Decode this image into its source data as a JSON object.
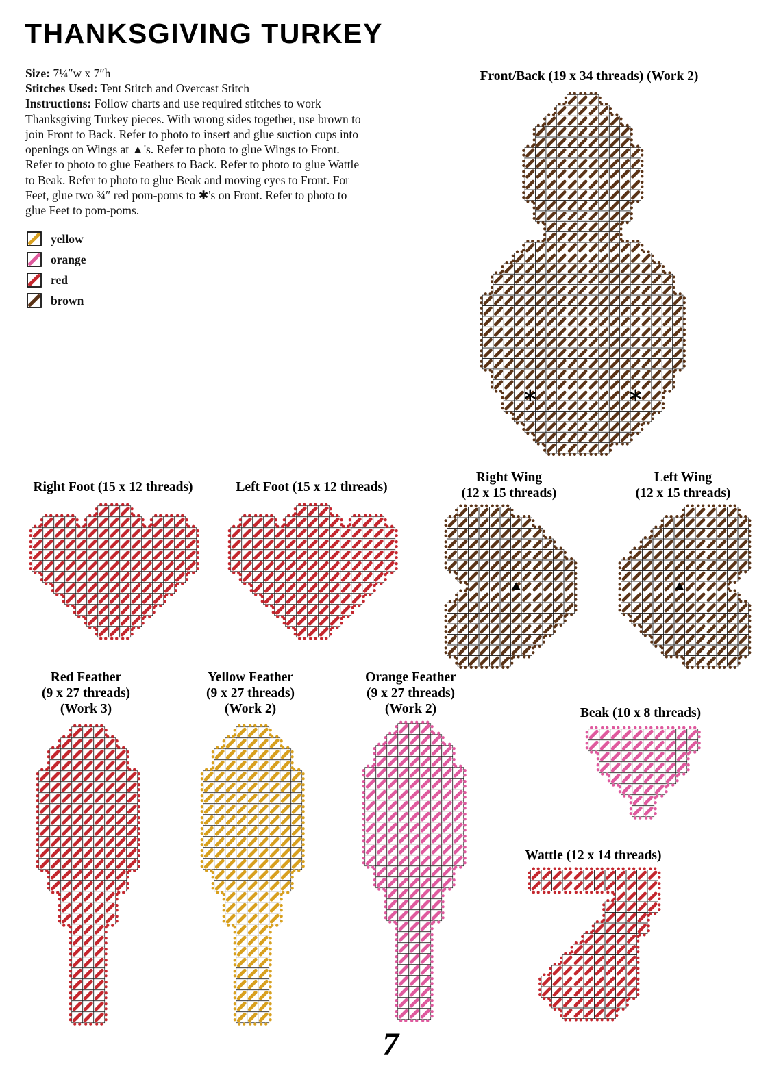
{
  "header": {
    "title": "THANKSGIVING TURKEY"
  },
  "info": {
    "size_label": "Size:",
    "size_value": "7¼″w x 7″h",
    "stitches_label": "Stitches Used:",
    "stitches_value": "Tent Stitch and Overcast Stitch",
    "instructions_label": "Instructions:",
    "instructions_value": "Follow charts and use required stitches to work Thanksgiving Turkey pieces. With wrong sides together, use brown to join Front to Back.  Refer to photo to insert and glue suction cups into openings on Wings at ▲'s. Refer to photo to glue Wings to Front. Refer to photo to glue Feathers to Back. Refer to photo to glue Wattle to Beak. Refer to photo to glue Beak and moving eyes to Front. For Feet, glue two ¾″ red pom-poms to ✱'s on Front. Refer to photo to glue Feet to pom-poms."
  },
  "legend": {
    "items": [
      {
        "label": "yellow",
        "color": "#d8a01f"
      },
      {
        "label": "orange",
        "color": "#df5a9e"
      },
      {
        "label": "red",
        "color": "#c4272e"
      },
      {
        "label": "brown",
        "color": "#5a3317"
      }
    ]
  },
  "charts": [
    {
      "id": "front_back",
      "title_lines": [
        "Front/Back (19 x 34 threads) (Work 2)"
      ],
      "color_name": "brown",
      "color": "#5a3317",
      "cols": 19,
      "rows": 34,
      "mask": [
        [
          [
            8,
            10
          ]
        ],
        [
          [
            7,
            11
          ]
        ],
        [
          [
            6,
            12
          ]
        ],
        [
          [
            5,
            13
          ]
        ],
        [
          [
            5,
            13
          ]
        ],
        [
          [
            4,
            14
          ]
        ],
        [
          [
            4,
            14
          ]
        ],
        [
          [
            4,
            14
          ]
        ],
        [
          [
            4,
            14
          ]
        ],
        [
          [
            4,
            14
          ]
        ],
        [
          [
            5,
            13
          ]
        ],
        [
          [
            5,
            13
          ]
        ],
        [
          [
            6,
            12
          ]
        ],
        [
          [
            6,
            12
          ]
        ],
        [
          [
            4,
            14
          ]
        ],
        [
          [
            3,
            15
          ]
        ],
        [
          [
            2,
            16
          ]
        ],
        [
          [
            1,
            17
          ]
        ],
        [
          [
            1,
            17
          ]
        ],
        [
          [
            0,
            18
          ]
        ],
        [
          [
            0,
            18
          ]
        ],
        [
          [
            0,
            18
          ]
        ],
        [
          [
            0,
            18
          ]
        ],
        [
          [
            0,
            18
          ]
        ],
        [
          [
            0,
            18
          ]
        ],
        [
          [
            0,
            18
          ]
        ],
        [
          [
            1,
            17
          ]
        ],
        [
          [
            1,
            17
          ]
        ],
        [
          [
            2,
            16
          ]
        ],
        [
          [
            2,
            16
          ]
        ],
        [
          [
            3,
            15
          ]
        ],
        [
          [
            4,
            14
          ]
        ],
        [
          [
            5,
            13
          ]
        ],
        [
          [
            6,
            11
          ]
        ]
      ],
      "markers": [
        {
          "type": "star",
          "row": 28,
          "col": 4
        },
        {
          "type": "star",
          "row": 28,
          "col": 14
        }
      ]
    },
    {
      "id": "right_foot",
      "title_lines": [
        "Right Foot (15 x 12 threads)"
      ],
      "color_name": "red",
      "color": "#c4272e",
      "cols": 15,
      "rows": 12,
      "mask": [
        [
          [
            6,
            8
          ]
        ],
        [
          [
            1,
            3
          ],
          [
            5,
            9
          ],
          [
            11,
            13
          ]
        ],
        [
          [
            0,
            4
          ],
          [
            5,
            9
          ],
          [
            10,
            14
          ]
        ],
        [
          [
            0,
            14
          ]
        ],
        [
          [
            0,
            14
          ]
        ],
        [
          [
            0,
            14
          ]
        ],
        [
          [
            1,
            13
          ]
        ],
        [
          [
            2,
            12
          ]
        ],
        [
          [
            3,
            11
          ]
        ],
        [
          [
            4,
            10
          ]
        ],
        [
          [
            5,
            9
          ]
        ],
        [
          [
            6,
            8
          ]
        ]
      ],
      "markers": []
    },
    {
      "id": "left_foot",
      "title_lines": [
        "Left Foot (15 x 12 threads)"
      ],
      "color_name": "red",
      "color": "#c4272e",
      "cols": 15,
      "rows": 12,
      "mask": [
        [
          [
            6,
            8
          ]
        ],
        [
          [
            1,
            3
          ],
          [
            5,
            9
          ],
          [
            11,
            13
          ]
        ],
        [
          [
            0,
            4
          ],
          [
            5,
            9
          ],
          [
            10,
            14
          ]
        ],
        [
          [
            0,
            14
          ]
        ],
        [
          [
            0,
            14
          ]
        ],
        [
          [
            0,
            14
          ]
        ],
        [
          [
            1,
            13
          ]
        ],
        [
          [
            2,
            12
          ]
        ],
        [
          [
            3,
            11
          ]
        ],
        [
          [
            4,
            10
          ]
        ],
        [
          [
            5,
            9
          ]
        ],
        [
          [
            6,
            8
          ]
        ]
      ],
      "markers": []
    },
    {
      "id": "right_wing",
      "title_lines": [
        "Right Wing",
        "(12 x 15 threads)"
      ],
      "color_name": "brown",
      "color": "#5a3317",
      "cols": 12,
      "rows": 15,
      "mask": [
        [
          [
            1,
            5
          ]
        ],
        [
          [
            0,
            7
          ]
        ],
        [
          [
            0,
            8
          ]
        ],
        [
          [
            0,
            9
          ]
        ],
        [
          [
            0,
            10
          ]
        ],
        [
          [
            0,
            11
          ]
        ],
        [
          [
            1,
            11
          ]
        ],
        [
          [
            2,
            11
          ]
        ],
        [
          [
            1,
            11
          ]
        ],
        [
          [
            0,
            11
          ]
        ],
        [
          [
            0,
            10
          ]
        ],
        [
          [
            0,
            9
          ]
        ],
        [
          [
            0,
            8
          ]
        ],
        [
          [
            0,
            7
          ]
        ],
        [
          [
            1,
            5
          ]
        ]
      ],
      "markers": [
        {
          "type": "triangle",
          "row": 7,
          "col": 6
        }
      ]
    },
    {
      "id": "left_wing",
      "title_lines": [
        "Left Wing",
        "(12 x 15 threads)"
      ],
      "color_name": "brown",
      "color": "#5a3317",
      "cols": 12,
      "rows": 15,
      "mask": [
        [
          [
            6,
            10
          ]
        ],
        [
          [
            4,
            11
          ]
        ],
        [
          [
            3,
            11
          ]
        ],
        [
          [
            2,
            11
          ]
        ],
        [
          [
            1,
            11
          ]
        ],
        [
          [
            0,
            11
          ]
        ],
        [
          [
            0,
            10
          ]
        ],
        [
          [
            0,
            9
          ]
        ],
        [
          [
            0,
            10
          ]
        ],
        [
          [
            0,
            11
          ]
        ],
        [
          [
            1,
            11
          ]
        ],
        [
          [
            2,
            11
          ]
        ],
        [
          [
            3,
            11
          ]
        ],
        [
          [
            4,
            11
          ]
        ],
        [
          [
            6,
            10
          ]
        ]
      ],
      "markers": [
        {
          "type": "triangle",
          "row": 7,
          "col": 5
        }
      ]
    },
    {
      "id": "red_feather",
      "title_lines": [
        "Red Feather",
        "(9 x 27 threads)",
        "(Work 3)"
      ],
      "color_name": "red",
      "color": "#c4272e",
      "cols": 9,
      "rows": 27,
      "mask": [
        [
          [
            3,
            5
          ]
        ],
        [
          [
            2,
            6
          ]
        ],
        [
          [
            1,
            7
          ]
        ],
        [
          [
            1,
            7
          ]
        ],
        [
          [
            0,
            8
          ]
        ],
        [
          [
            0,
            8
          ]
        ],
        [
          [
            0,
            8
          ]
        ],
        [
          [
            0,
            8
          ]
        ],
        [
          [
            0,
            8
          ]
        ],
        [
          [
            0,
            8
          ]
        ],
        [
          [
            0,
            8
          ]
        ],
        [
          [
            0,
            8
          ]
        ],
        [
          [
            0,
            8
          ]
        ],
        [
          [
            1,
            7
          ]
        ],
        [
          [
            1,
            7
          ]
        ],
        [
          [
            2,
            6
          ]
        ],
        [
          [
            2,
            6
          ]
        ],
        [
          [
            2,
            6
          ]
        ],
        [
          [
            3,
            5
          ]
        ],
        [
          [
            3,
            5
          ]
        ],
        [
          [
            3,
            5
          ]
        ],
        [
          [
            3,
            5
          ]
        ],
        [
          [
            3,
            5
          ]
        ],
        [
          [
            3,
            5
          ]
        ],
        [
          [
            3,
            5
          ]
        ],
        [
          [
            3,
            5
          ]
        ],
        [
          [
            3,
            5
          ]
        ]
      ],
      "markers": []
    },
    {
      "id": "yellow_feather",
      "title_lines": [
        "Yellow Feather",
        "(9 x 27 threads)",
        "(Work 2)"
      ],
      "color_name": "yellow",
      "color": "#d8a01f",
      "cols": 9,
      "rows": 27,
      "mask": [
        [
          [
            3,
            5
          ]
        ],
        [
          [
            2,
            6
          ]
        ],
        [
          [
            1,
            7
          ]
        ],
        [
          [
            1,
            7
          ]
        ],
        [
          [
            0,
            8
          ]
        ],
        [
          [
            0,
            8
          ]
        ],
        [
          [
            0,
            8
          ]
        ],
        [
          [
            0,
            8
          ]
        ],
        [
          [
            0,
            8
          ]
        ],
        [
          [
            0,
            8
          ]
        ],
        [
          [
            0,
            8
          ]
        ],
        [
          [
            0,
            8
          ]
        ],
        [
          [
            0,
            8
          ]
        ],
        [
          [
            1,
            7
          ]
        ],
        [
          [
            1,
            7
          ]
        ],
        [
          [
            2,
            6
          ]
        ],
        [
          [
            2,
            6
          ]
        ],
        [
          [
            2,
            6
          ]
        ],
        [
          [
            3,
            5
          ]
        ],
        [
          [
            3,
            5
          ]
        ],
        [
          [
            3,
            5
          ]
        ],
        [
          [
            3,
            5
          ]
        ],
        [
          [
            3,
            5
          ]
        ],
        [
          [
            3,
            5
          ]
        ],
        [
          [
            3,
            5
          ]
        ],
        [
          [
            3,
            5
          ]
        ],
        [
          [
            3,
            5
          ]
        ]
      ],
      "markers": []
    },
    {
      "id": "orange_feather",
      "title_lines": [
        "Orange Feather",
        "(9 x 27 threads)",
        "(Work 2)"
      ],
      "color_name": "orange",
      "color": "#df5a9e",
      "cols": 9,
      "rows": 27,
      "mask": [
        [
          [
            3,
            5
          ]
        ],
        [
          [
            2,
            6
          ]
        ],
        [
          [
            1,
            7
          ]
        ],
        [
          [
            1,
            7
          ]
        ],
        [
          [
            0,
            8
          ]
        ],
        [
          [
            0,
            8
          ]
        ],
        [
          [
            0,
            8
          ]
        ],
        [
          [
            0,
            8
          ]
        ],
        [
          [
            0,
            8
          ]
        ],
        [
          [
            0,
            8
          ]
        ],
        [
          [
            0,
            8
          ]
        ],
        [
          [
            0,
            8
          ]
        ],
        [
          [
            0,
            8
          ]
        ],
        [
          [
            1,
            7
          ]
        ],
        [
          [
            1,
            7
          ]
        ],
        [
          [
            2,
            6
          ]
        ],
        [
          [
            2,
            6
          ]
        ],
        [
          [
            2,
            6
          ]
        ],
        [
          [
            3,
            5
          ]
        ],
        [
          [
            3,
            5
          ]
        ],
        [
          [
            3,
            5
          ]
        ],
        [
          [
            3,
            5
          ]
        ],
        [
          [
            3,
            5
          ]
        ],
        [
          [
            3,
            5
          ]
        ],
        [
          [
            3,
            5
          ]
        ],
        [
          [
            3,
            5
          ]
        ],
        [
          [
            3,
            5
          ]
        ]
      ],
      "markers": []
    },
    {
      "id": "beak",
      "title_lines": [
        "Beak (10 x 8 threads)"
      ],
      "color_name": "orange",
      "color": "#df5a9e",
      "cols": 10,
      "rows": 8,
      "mask": [
        [
          [
            0,
            9
          ]
        ],
        [
          [
            0,
            9
          ]
        ],
        [
          [
            1,
            8
          ]
        ],
        [
          [
            1,
            8
          ]
        ],
        [
          [
            2,
            7
          ]
        ],
        [
          [
            3,
            6
          ]
        ],
        [
          [
            4,
            5
          ]
        ],
        [
          [
            4,
            5
          ]
        ]
      ],
      "markers": []
    },
    {
      "id": "wattle",
      "title_lines": [
        "Wattle (12 x 14 threads)"
      ],
      "color_name": "red",
      "color": "#c4272e",
      "cols": 12,
      "rows": 14,
      "mask": [
        [
          [
            0,
            11
          ]
        ],
        [
          [
            0,
            11
          ]
        ],
        [
          [
            8,
            11
          ]
        ],
        [
          [
            7,
            11
          ]
        ],
        [
          [
            7,
            10
          ]
        ],
        [
          [
            6,
            10
          ]
        ],
        [
          [
            5,
            9
          ]
        ],
        [
          [
            4,
            9
          ]
        ],
        [
          [
            3,
            9
          ]
        ],
        [
          [
            2,
            9
          ]
        ],
        [
          [
            1,
            9
          ]
        ],
        [
          [
            1,
            9
          ]
        ],
        [
          [
            2,
            8
          ]
        ],
        [
          [
            3,
            7
          ]
        ]
      ],
      "markers": []
    }
  ],
  "footer": {
    "page_number": "7"
  }
}
